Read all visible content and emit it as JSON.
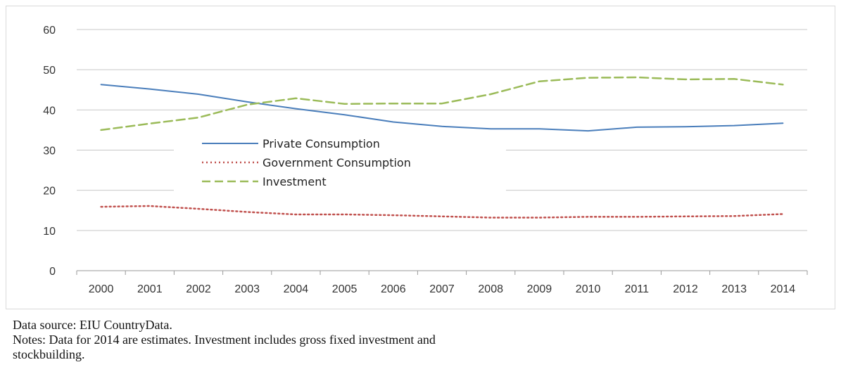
{
  "chart_data": {
    "type": "line",
    "title": "",
    "xlabel": "",
    "ylabel": "",
    "x": [
      "2000",
      "2001",
      "2002",
      "2003",
      "2004",
      "2005",
      "2006",
      "2007",
      "2008",
      "2009",
      "2010",
      "2011",
      "2012",
      "2013",
      "2014"
    ],
    "ylim": [
      0,
      60
    ],
    "yticks": [
      0,
      10,
      20,
      30,
      40,
      50,
      60
    ],
    "grid": true,
    "legend_position": "center-left",
    "series": [
      {
        "name": "Private Consumption",
        "style": "solid",
        "color": "#4a7ebb",
        "values": [
          46.3,
          45.2,
          43.9,
          42.0,
          40.3,
          38.8,
          37.0,
          35.9,
          35.3,
          35.3,
          34.8,
          35.7,
          35.8,
          36.1,
          36.7
        ]
      },
      {
        "name": "Government Consumption",
        "style": "dotted",
        "color": "#c0504d",
        "values": [
          15.9,
          16.1,
          15.4,
          14.6,
          14.0,
          14.0,
          13.8,
          13.5,
          13.2,
          13.2,
          13.4,
          13.4,
          13.5,
          13.6,
          14.1
        ]
      },
      {
        "name": "Investment",
        "style": "dashed",
        "color": "#9bbb59",
        "values": [
          35.0,
          36.6,
          38.1,
          41.3,
          42.9,
          41.5,
          41.6,
          41.6,
          43.9,
          47.1,
          48.0,
          48.1,
          47.6,
          47.7,
          46.3
        ]
      }
    ]
  },
  "caption": {
    "source": "Data source: EIU CountryData.",
    "notes_line1": "Notes: Data for 2014 are estimates. Investment includes gross fixed investment and",
    "notes_line2": "stockbuilding."
  }
}
